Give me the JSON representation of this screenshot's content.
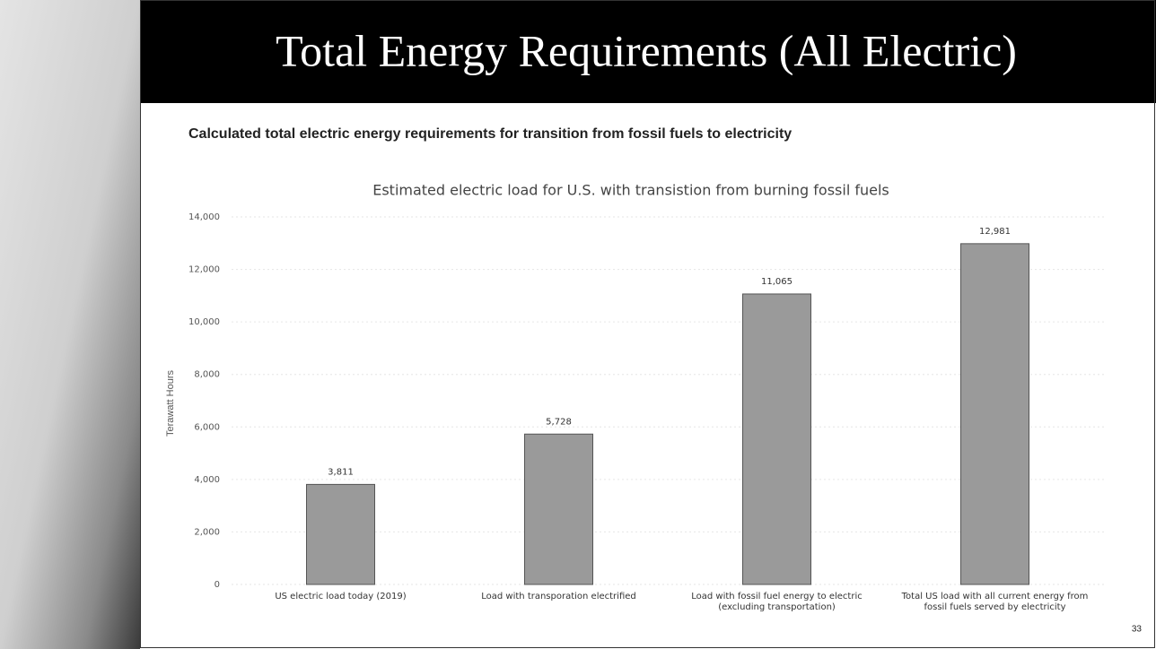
{
  "slide": {
    "title": "Total Energy Requirements (All Electric)",
    "subtitle": "Calculated total electric energy requirements for transition from fossil fuels to electricity",
    "page_number": 33
  },
  "chart_data": {
    "type": "bar",
    "title": "Estimated electric load for U.S. with transistion from burning fossil fuels",
    "y_label": "Terawatt Hours",
    "categories": [
      "US electric load today (2019)",
      "Load with transporation electrified",
      "Load with fossil fuel energy to electric (excluding transportation)",
      "Total US load with all current energy from fossil fuels served by electricity"
    ],
    "values": [
      3811,
      5728,
      11065,
      12981
    ],
    "value_labels": [
      "3,811",
      "5,728",
      "11,065",
      "12,981"
    ],
    "color": "#9a9a9a",
    "ylim": [
      0,
      14000
    ],
    "yticks": [
      0,
      {
        "value": 2000,
        "label": "2,000"
      },
      {
        "value": 4000,
        "label": "4,000"
      },
      {
        "value": 6000,
        "label": "6,000"
      },
      {
        "value": 8000,
        "label": "8,000"
      },
      {
        "value": 10000,
        "label": "10,000"
      },
      {
        "value": 12000,
        "label": "12,000"
      },
      {
        "value": 14000,
        "label": "14,000"
      }
    ],
    "grid": true
  }
}
